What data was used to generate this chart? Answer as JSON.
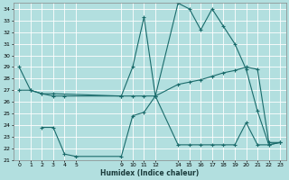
{
  "xlabel": "Humidex (Indice chaleur)",
  "bg_color": "#b2dfdf",
  "grid_color": "#ffffff",
  "line_color": "#1a6b6b",
  "ylim": [
    21,
    34.5
  ],
  "xlim": [
    -0.5,
    23.5
  ],
  "yticks": [
    21,
    22,
    23,
    24,
    25,
    26,
    27,
    28,
    29,
    30,
    31,
    32,
    33,
    34
  ],
  "xticks": [
    0,
    1,
    2,
    3,
    4,
    5,
    9,
    10,
    11,
    12,
    14,
    15,
    16,
    17,
    18,
    19,
    20,
    21,
    22,
    23
  ],
  "line1_x": [
    0,
    1,
    2,
    3,
    9,
    10,
    11,
    12,
    14,
    15,
    16,
    17,
    18,
    19,
    20,
    21,
    22,
    23
  ],
  "line1_y": [
    29,
    27,
    26.7,
    26.7,
    26.5,
    29.0,
    33.3,
    26.5,
    34.5,
    34.0,
    32.2,
    34.0,
    32.5,
    31.0,
    28.8,
    25.2,
    22.3,
    22.5
  ],
  "line2_x": [
    0,
    1,
    2,
    3,
    4,
    9,
    10,
    11,
    12,
    14,
    15,
    16,
    17,
    18,
    19,
    20,
    21,
    22,
    23
  ],
  "line2_y": [
    27.0,
    27.0,
    26.7,
    26.5,
    26.5,
    26.5,
    26.5,
    26.5,
    26.5,
    27.5,
    27.7,
    27.9,
    28.2,
    28.5,
    28.7,
    29.0,
    28.8,
    22.5,
    22.5
  ],
  "line3_x": [
    2,
    3,
    4,
    5,
    9,
    10,
    11,
    12,
    14,
    15,
    16,
    17,
    18,
    19,
    20,
    21,
    22,
    23
  ],
  "line3_y": [
    23.8,
    23.8,
    21.5,
    21.3,
    21.3,
    24.8,
    25.1,
    26.5,
    22.3,
    22.3,
    22.3,
    22.3,
    22.3,
    22.3,
    24.2,
    22.3,
    22.3,
    22.5
  ]
}
